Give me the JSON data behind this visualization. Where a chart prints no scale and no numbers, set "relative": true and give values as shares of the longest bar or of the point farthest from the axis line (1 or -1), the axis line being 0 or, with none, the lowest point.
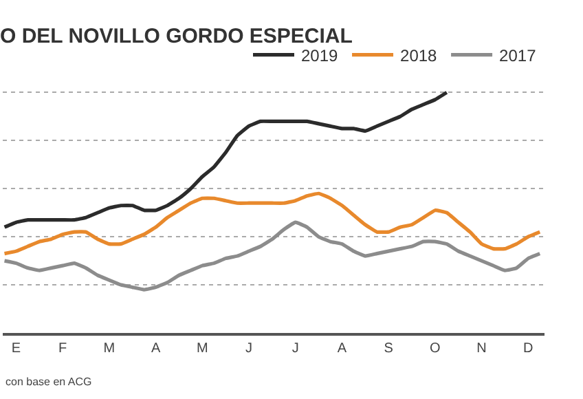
{
  "chart_data": {
    "type": "line",
    "title": "O DEL NOVILLO GORDO ESPECIAL",
    "relative": true,
    "legend": "top right",
    "grid": "y",
    "line_style": "solid",
    "marker": "none",
    "categories": [
      null,
      "E",
      null,
      null,
      null,
      "F",
      null,
      null,
      null,
      "M",
      null,
      null,
      null,
      "A",
      null,
      null,
      null,
      "M",
      null,
      null,
      null,
      "J",
      null,
      null,
      null,
      "J",
      null,
      null,
      null,
      "A",
      null,
      null,
      null,
      "S",
      null,
      null,
      null,
      "O",
      null,
      null,
      null,
      "N",
      null,
      null,
      null,
      "D",
      null
    ],
    "annotations": [
      "con base en ACG"
    ],
    "series": [
      {
        "name": "2019",
        "color": "#2b2b2b",
        "values": [
          0.44,
          0.46,
          0.47,
          0.47,
          0.47,
          0.47,
          0.47,
          0.48,
          0.5,
          0.52,
          0.53,
          0.53,
          0.51,
          0.51,
          0.53,
          0.56,
          0.6,
          0.65,
          0.69,
          0.75,
          0.82,
          0.86,
          0.88,
          0.88,
          0.88,
          0.88,
          0.88,
          0.87,
          0.86,
          0.85,
          0.85,
          0.84,
          0.86,
          0.88,
          0.9,
          0.93,
          0.95,
          0.97,
          1.0,
          null,
          null,
          null,
          null,
          null,
          null,
          null,
          null
        ]
      },
      {
        "name": "2018",
        "color": "#e8892c",
        "values": [
          0.33,
          0.34,
          0.36,
          0.38,
          0.39,
          0.41,
          0.42,
          0.42,
          0.39,
          0.37,
          0.37,
          0.39,
          0.41,
          0.44,
          0.48,
          0.51,
          0.54,
          0.56,
          0.56,
          0.55,
          0.54,
          0.54,
          0.54,
          0.54,
          0.54,
          0.55,
          0.57,
          0.58,
          0.56,
          0.53,
          0.49,
          0.45,
          0.42,
          0.42,
          0.44,
          0.45,
          0.48,
          0.51,
          0.5,
          0.46,
          0.42,
          0.37,
          0.35,
          0.35,
          0.37,
          0.4,
          0.42
        ]
      },
      {
        "name": "2017",
        "color": "#8c8c8c",
        "values": [
          0.3,
          0.29,
          0.27,
          0.26,
          0.27,
          0.28,
          0.29,
          0.27,
          0.24,
          0.22,
          0.2,
          0.19,
          0.18,
          0.19,
          0.21,
          0.24,
          0.26,
          0.28,
          0.29,
          0.31,
          0.32,
          0.34,
          0.36,
          0.39,
          0.43,
          0.46,
          0.44,
          0.4,
          0.38,
          0.37,
          0.34,
          0.32,
          0.33,
          0.34,
          0.35,
          0.36,
          0.38,
          0.38,
          0.37,
          0.34,
          0.32,
          0.3,
          0.28,
          0.26,
          0.27,
          0.31,
          0.33
        ]
      }
    ]
  }
}
